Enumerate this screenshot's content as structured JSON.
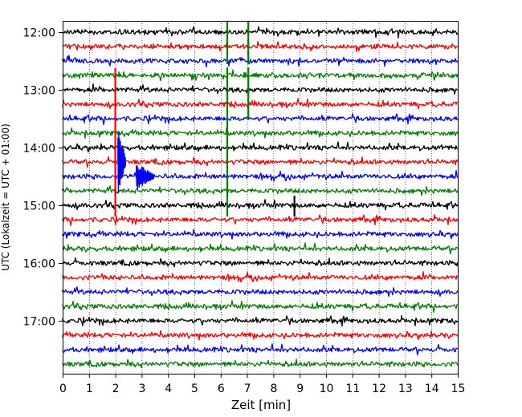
{
  "chart_data": {
    "type": "line",
    "title": "",
    "xlabel": "Zeit  [min]",
    "ylabel": "UTC (Lokalzeit = UTC + 01:00)",
    "xlim": [
      0,
      15
    ],
    "x_ticks": [
      "0",
      "1",
      "2",
      "3",
      "4",
      "5",
      "6",
      "7",
      "8",
      "9",
      "10",
      "11",
      "12",
      "13",
      "14",
      "15"
    ],
    "y_ticks": [
      {
        "label": "12:00",
        "row": 0
      },
      {
        "label": "13:00",
        "row": 4
      },
      {
        "label": "14:00",
        "row": 8
      },
      {
        "label": "15:00",
        "row": 12
      },
      {
        "label": "16:00",
        "row": 16
      },
      {
        "label": "17:00",
        "row": 20
      }
    ],
    "grid": "vertical dotted lines at each minute",
    "trace_colors": [
      "#000000",
      "#ff0000",
      "#0000ff",
      "#008000"
    ],
    "row_interval_minutes": 15,
    "rows": [
      {
        "start": "12:00",
        "color": "#000000"
      },
      {
        "start": "12:15",
        "color": "#ff0000"
      },
      {
        "start": "12:30",
        "color": "#0000ff"
      },
      {
        "start": "12:45",
        "color": "#008000"
      },
      {
        "start": "13:00",
        "color": "#000000"
      },
      {
        "start": "13:15",
        "color": "#ff0000"
      },
      {
        "start": "13:30",
        "color": "#0000ff"
      },
      {
        "start": "13:45",
        "color": "#008000"
      },
      {
        "start": "14:00",
        "color": "#000000"
      },
      {
        "start": "14:15",
        "color": "#ff0000"
      },
      {
        "start": "14:30",
        "color": "#0000ff"
      },
      {
        "start": "14:45",
        "color": "#008000"
      },
      {
        "start": "15:00",
        "color": "#000000"
      },
      {
        "start": "15:15",
        "color": "#ff0000"
      },
      {
        "start": "15:30",
        "color": "#0000ff"
      },
      {
        "start": "15:45",
        "color": "#008000"
      },
      {
        "start": "16:00",
        "color": "#000000"
      },
      {
        "start": "16:15",
        "color": "#ff0000"
      },
      {
        "start": "16:30",
        "color": "#0000ff"
      },
      {
        "start": "16:45",
        "color": "#008000"
      },
      {
        "start": "17:00",
        "color": "#000000"
      },
      {
        "start": "17:15",
        "color": "#ff0000"
      },
      {
        "start": "17:30",
        "color": "#0000ff"
      },
      {
        "start": "17:45",
        "color": "#008000"
      }
    ],
    "events": [
      {
        "row": 0,
        "t_min": 6.25,
        "color": "#008000",
        "type": "spike"
      },
      {
        "row": 0,
        "t_min": 7.05,
        "color": "#008000",
        "type": "spike"
      },
      {
        "row": 3,
        "t_min": 6.25,
        "color": "#008000",
        "type": "spike"
      },
      {
        "row": 3,
        "t_min": 7.05,
        "color": "#008000",
        "type": "spike"
      },
      {
        "row": 5,
        "t_min": 2.0,
        "color": "#ff0000",
        "type": "spike"
      },
      {
        "row": 9,
        "t_min": 2.1,
        "color": "#0000ff",
        "type": "burst"
      },
      {
        "row": 10,
        "t_min": 2.8,
        "color": "#0000ff",
        "type": "burst"
      },
      {
        "row": 12,
        "t_min": 8.8,
        "color": "#000000",
        "type": "spike"
      }
    ]
  }
}
